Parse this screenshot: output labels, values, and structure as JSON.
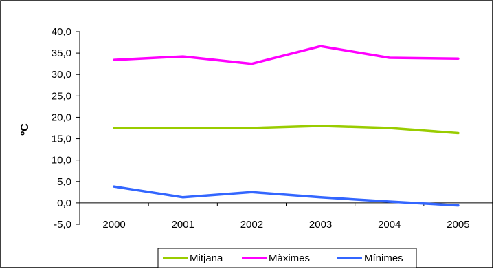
{
  "chart_data": {
    "type": "line",
    "title": "",
    "xlabel": "",
    "ylabel": "ºC",
    "categories": [
      "2000",
      "2001",
      "2002",
      "2003",
      "2004",
      "2005"
    ],
    "ylim": [
      -5.0,
      40.0
    ],
    "yticks": [
      "40,0",
      "35,0",
      "30,0",
      "25,0",
      "20,0",
      "15,0",
      "10,0",
      "5,0",
      "0,0",
      "-5,0"
    ],
    "grid": false,
    "legend_position": "bottom",
    "series": [
      {
        "name": "Mitjana",
        "color": "#99cc00",
        "values": [
          17.5,
          17.5,
          17.5,
          18.0,
          17.5,
          16.3
        ]
      },
      {
        "name": "Màximes",
        "color": "#ff00ff",
        "values": [
          33.4,
          34.2,
          32.5,
          36.6,
          33.9,
          33.7
        ]
      },
      {
        "name": "Mínimes",
        "color": "#3366ff",
        "values": [
          3.8,
          1.3,
          2.5,
          1.3,
          0.3,
          -0.6
        ]
      }
    ]
  }
}
